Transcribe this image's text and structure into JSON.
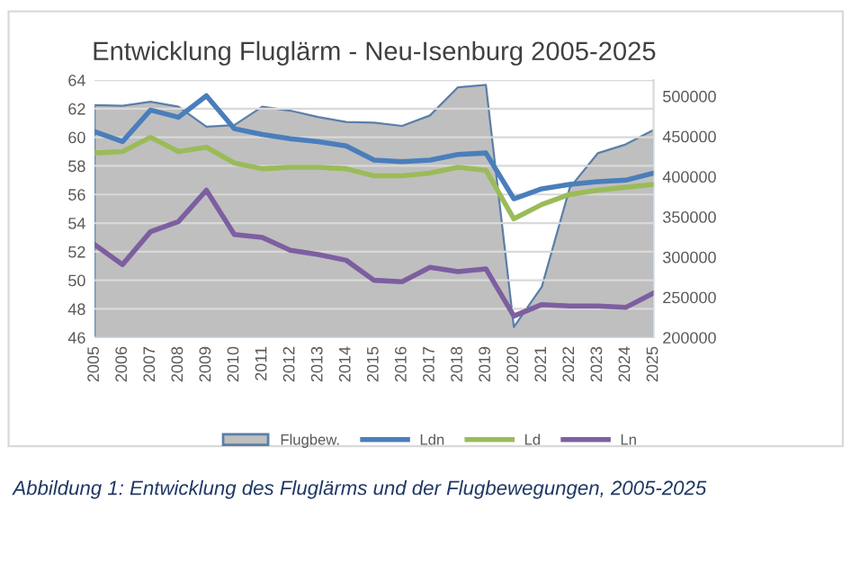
{
  "chart_data": {
    "type": "line",
    "title": "Entwicklung Fluglärm - Neu-Isenburg 2005-2025",
    "categories": [
      "2005",
      "2006",
      "2007",
      "2008",
      "2009",
      "2010",
      "2011",
      "2012",
      "2013",
      "2014",
      "2015",
      "2016",
      "2017",
      "2018",
      "2019",
      "2020",
      "2021",
      "2022",
      "2023",
      "2024",
      "2025"
    ],
    "series": [
      {
        "name": "Flugbew.",
        "type": "area",
        "axis": "y2",
        "color": "#bfbfbf",
        "values": [
          489000,
          488000,
          493000,
          487000,
          462000,
          464000,
          487000,
          482000,
          474000,
          468000,
          467000,
          463000,
          476000,
          511000,
          514000,
          213000,
          263000,
          386000,
          429000,
          440000,
          458000
        ]
      },
      {
        "name": "Ldn",
        "color": "#4a7ebb",
        "values": [
          60.4,
          59.7,
          61.9,
          61.4,
          62.9,
          60.6,
          60.2,
          59.9,
          59.7,
          59.4,
          58.4,
          58.3,
          58.4,
          58.8,
          58.9,
          55.7,
          56.4,
          56.7,
          56.9,
          57.0,
          57.5
        ]
      },
      {
        "name": "Ld",
        "color": "#9bbb59",
        "values": [
          58.9,
          59.0,
          60.0,
          59.0,
          59.3,
          58.2,
          57.8,
          57.9,
          57.9,
          57.8,
          57.3,
          57.3,
          57.5,
          57.9,
          57.7,
          54.3,
          55.3,
          56.0,
          56.3,
          56.5,
          56.7
        ]
      },
      {
        "name": "Ln",
        "color": "#7d5fa0",
        "values": [
          52.5,
          51.1,
          53.4,
          54.1,
          56.3,
          53.2,
          53.0,
          52.1,
          51.8,
          51.4,
          50.0,
          49.9,
          50.9,
          50.6,
          50.8,
          47.5,
          48.3,
          48.2,
          48.2,
          48.1,
          49.1
        ]
      }
    ],
    "ylim": [
      46,
      64
    ],
    "yticks": [
      46,
      48,
      50,
      52,
      54,
      56,
      58,
      60,
      62,
      64
    ],
    "y2lim": [
      200000,
      520000
    ],
    "y2ticks": [
      200000,
      250000,
      300000,
      350000,
      400000,
      450000,
      500000
    ],
    "grid": "y",
    "legend": "bottom",
    "line_style": "solid",
    "marker": "none",
    "annotations": [
      "Abbildung 1: Entwicklung des Fluglärms und der Flugbewegungen, 2005-2025"
    ]
  }
}
